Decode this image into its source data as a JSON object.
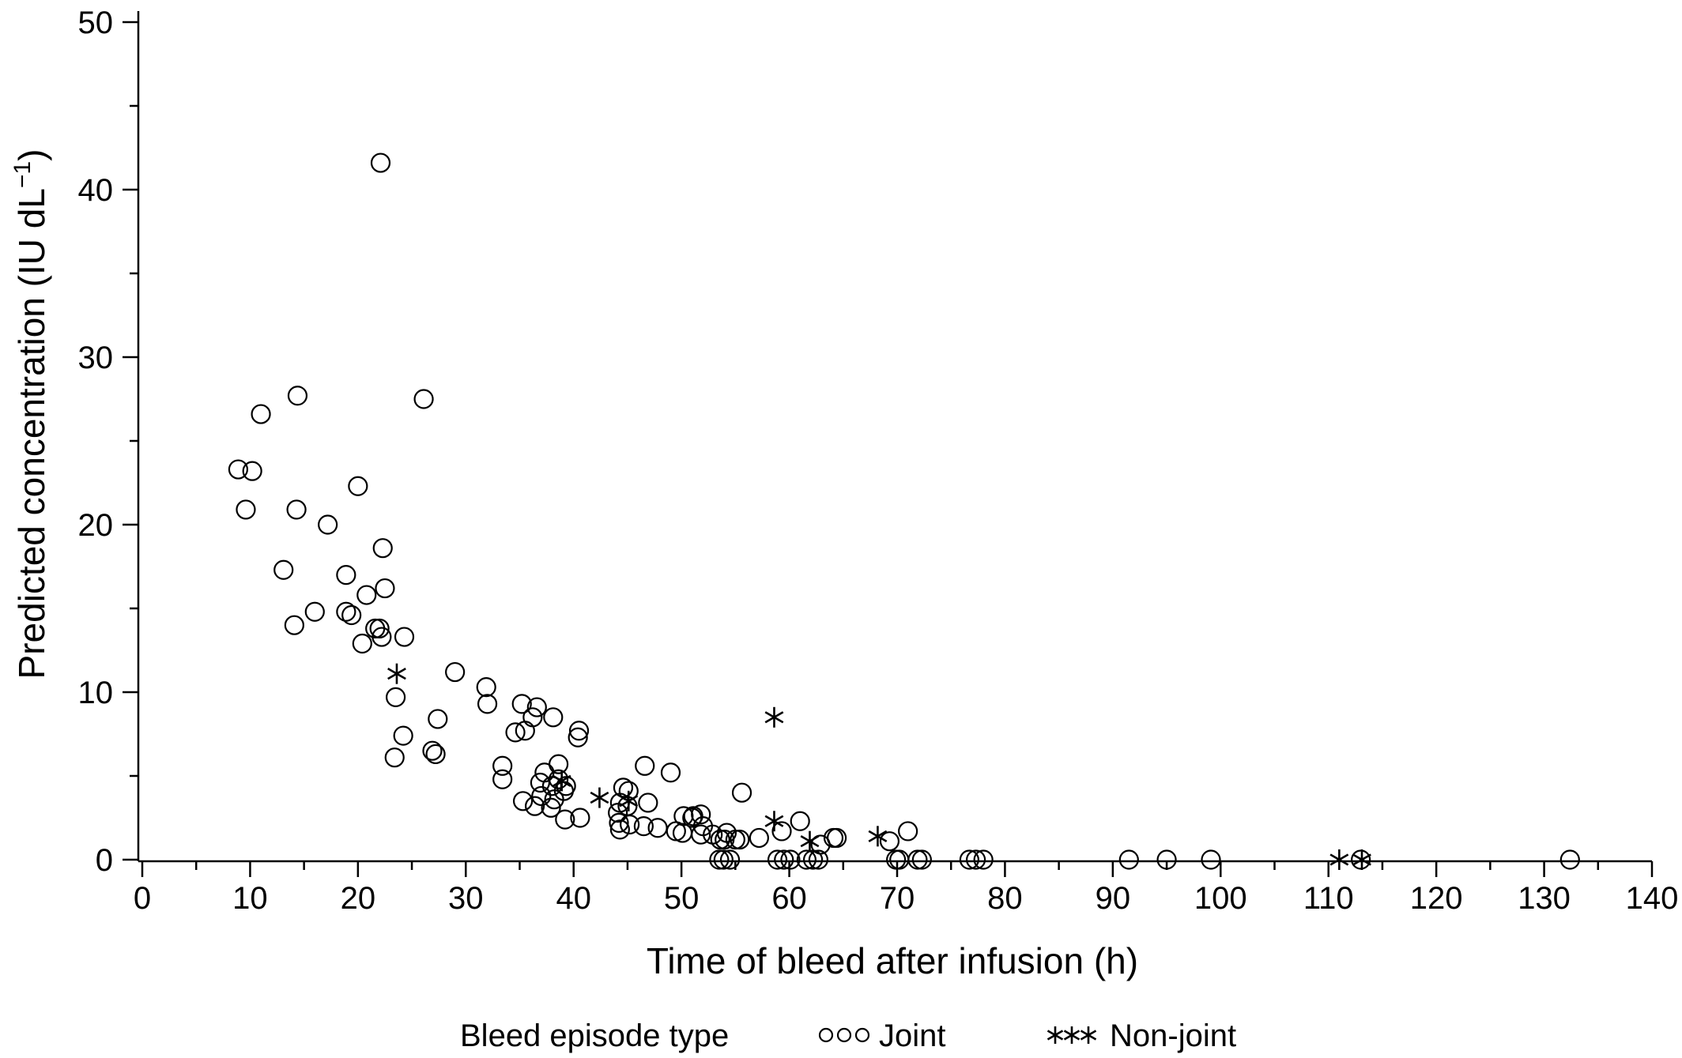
{
  "chart_data": {
    "type": "scatter",
    "title": "",
    "xlabel": "Time of bleed after infusion (h)",
    "ylabel": "Predicted concentration (IU dL",
    "ylabel_superscript": "−1",
    "ylabel_close": ")",
    "xlim": [
      0,
      140
    ],
    "ylim": [
      0,
      50
    ],
    "x_ticks": [
      0,
      10,
      20,
      30,
      40,
      50,
      60,
      70,
      80,
      90,
      100,
      110,
      120,
      130,
      140
    ],
    "x_minor_step": 5,
    "y_ticks": [
      0,
      10,
      20,
      30,
      40,
      50
    ],
    "y_minor_step": 5,
    "grid": false,
    "legend": {
      "title": "Bleed episode type",
      "placement": "bottom",
      "entries": [
        "Joint",
        "Non-joint"
      ]
    },
    "series": [
      {
        "name": "Joint",
        "marker": "circle",
        "points": [
          [
            22.1,
            41.6
          ],
          [
            14.4,
            27.7
          ],
          [
            26.1,
            27.5
          ],
          [
            11.0,
            26.6
          ],
          [
            8.9,
            23.3
          ],
          [
            10.2,
            23.2
          ],
          [
            20.0,
            22.3
          ],
          [
            9.6,
            20.9
          ],
          [
            14.3,
            20.9
          ],
          [
            17.2,
            20.0
          ],
          [
            22.3,
            18.6
          ],
          [
            13.1,
            17.3
          ],
          [
            18.9,
            17.0
          ],
          [
            22.5,
            16.2
          ],
          [
            20.8,
            15.8
          ],
          [
            16.0,
            14.8
          ],
          [
            18.9,
            14.8
          ],
          [
            19.4,
            14.6
          ],
          [
            14.1,
            14.0
          ],
          [
            21.6,
            13.8
          ],
          [
            22.0,
            13.8
          ],
          [
            24.3,
            13.3
          ],
          [
            22.2,
            13.3
          ],
          [
            20.4,
            12.9
          ],
          [
            29.0,
            11.2
          ],
          [
            31.9,
            10.3
          ],
          [
            23.5,
            9.7
          ],
          [
            32.0,
            9.3
          ],
          [
            35.2,
            9.3
          ],
          [
            36.6,
            9.1
          ],
          [
            38.1,
            8.5
          ],
          [
            36.2,
            8.5
          ],
          [
            27.4,
            8.4
          ],
          [
            40.5,
            7.7
          ],
          [
            35.5,
            7.7
          ],
          [
            34.6,
            7.6
          ],
          [
            40.4,
            7.3
          ],
          [
            24.2,
            7.4
          ],
          [
            26.9,
            6.5
          ],
          [
            27.2,
            6.3
          ],
          [
            23.4,
            6.1
          ],
          [
            46.6,
            5.6
          ],
          [
            33.4,
            5.6
          ],
          [
            38.6,
            5.7
          ],
          [
            49.0,
            5.2
          ],
          [
            37.3,
            5.2
          ],
          [
            33.4,
            4.8
          ],
          [
            38.6,
            4.8
          ],
          [
            36.9,
            4.6
          ],
          [
            38.0,
            4.4
          ],
          [
            44.6,
            4.3
          ],
          [
            39.3,
            4.4
          ],
          [
            55.6,
            4.0
          ],
          [
            45.1,
            4.1
          ],
          [
            37.0,
            3.8
          ],
          [
            39.1,
            4.1
          ],
          [
            38.2,
            3.6
          ],
          [
            35.3,
            3.5
          ],
          [
            44.3,
            3.4
          ],
          [
            46.9,
            3.4
          ],
          [
            37.9,
            3.1
          ],
          [
            36.4,
            3.2
          ],
          [
            45.0,
            3.2
          ],
          [
            44.1,
            2.8
          ],
          [
            51.8,
            2.7
          ],
          [
            51.1,
            2.6
          ],
          [
            50.2,
            2.6
          ],
          [
            51.0,
            2.5
          ],
          [
            40.6,
            2.5
          ],
          [
            39.2,
            2.4
          ],
          [
            61.0,
            2.3
          ],
          [
            44.2,
            2.2
          ],
          [
            45.2,
            2.1
          ],
          [
            46.5,
            2.0
          ],
          [
            52.0,
            2.0
          ],
          [
            47.8,
            1.9
          ],
          [
            44.3,
            1.8
          ],
          [
            59.3,
            1.7
          ],
          [
            71.0,
            1.7
          ],
          [
            49.5,
            1.7
          ],
          [
            50.1,
            1.6
          ],
          [
            51.8,
            1.5
          ],
          [
            54.2,
            1.6
          ],
          [
            52.9,
            1.5
          ],
          [
            57.2,
            1.3
          ],
          [
            54.0,
            1.2
          ],
          [
            64.4,
            1.3
          ],
          [
            64.1,
            1.3
          ],
          [
            55.0,
            1.2
          ],
          [
            53.6,
            1.2
          ],
          [
            55.4,
            1.2
          ],
          [
            62.9,
            0.9
          ],
          [
            69.3,
            1.1
          ],
          [
            53.5,
            0.0
          ],
          [
            53.9,
            0.0
          ],
          [
            54.5,
            0.0
          ],
          [
            58.9,
            0.0
          ],
          [
            59.5,
            0.0
          ],
          [
            60.1,
            0.0
          ],
          [
            61.6,
            0.0
          ],
          [
            62.2,
            0.0
          ],
          [
            62.7,
            0.0
          ],
          [
            69.9,
            0.0
          ],
          [
            70.2,
            0.0
          ],
          [
            71.9,
            0.0
          ],
          [
            72.3,
            0.0
          ],
          [
            76.7,
            0.0
          ],
          [
            77.3,
            0.0
          ],
          [
            78.0,
            0.0
          ],
          [
            91.5,
            0.0
          ],
          [
            95.0,
            0.0
          ],
          [
            99.1,
            0.0
          ],
          [
            113.0,
            0.0
          ],
          [
            132.4,
            0.0
          ]
        ]
      },
      {
        "name": "Non-joint",
        "marker": "asterisk",
        "points": [
          [
            58.6,
            8.5
          ],
          [
            23.6,
            11.1
          ],
          [
            38.9,
            4.7
          ],
          [
            42.4,
            3.7
          ],
          [
            45.1,
            3.5
          ],
          [
            58.6,
            2.3
          ],
          [
            61.9,
            1.1
          ],
          [
            68.2,
            1.4
          ],
          [
            111.0,
            0.0
          ],
          [
            113.1,
            0.0
          ]
        ]
      }
    ]
  }
}
